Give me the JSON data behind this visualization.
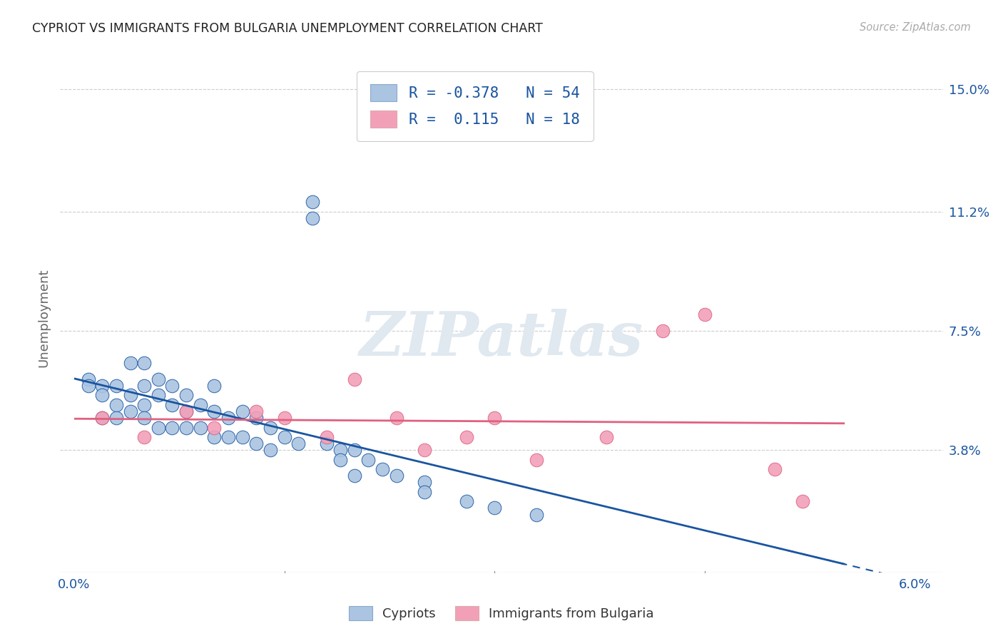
{
  "title": "CYPRIOT VS IMMIGRANTS FROM BULGARIA UNEMPLOYMENT CORRELATION CHART",
  "source": "Source: ZipAtlas.com",
  "ylabel": "Unemployment",
  "x_tick_vals": [
    0.0,
    0.015,
    0.03,
    0.045,
    0.06
  ],
  "x_tick_labels_visible": [
    "0.0%",
    "",
    "",
    "",
    "6.0%"
  ],
  "y_tick_vals": [
    0.0,
    0.038,
    0.075,
    0.112,
    0.15
  ],
  "y_tick_labels": [
    "",
    "3.8%",
    "7.5%",
    "11.2%",
    "15.0%"
  ],
  "xlim": [
    -0.001,
    0.062
  ],
  "ylim": [
    0.0,
    0.158
  ],
  "legend_label1": "Cypriots",
  "legend_label2": "Immigrants from Bulgaria",
  "color_blue": "#aac4e2",
  "color_pink": "#f2a0b8",
  "line_blue": "#1a55a0",
  "line_pink": "#e06080",
  "scatter_blue_x": [
    0.001,
    0.001,
    0.002,
    0.002,
    0.002,
    0.003,
    0.003,
    0.003,
    0.004,
    0.004,
    0.004,
    0.005,
    0.005,
    0.005,
    0.005,
    0.006,
    0.006,
    0.006,
    0.007,
    0.007,
    0.007,
    0.008,
    0.008,
    0.008,
    0.009,
    0.009,
    0.01,
    0.01,
    0.01,
    0.011,
    0.011,
    0.012,
    0.012,
    0.013,
    0.013,
    0.014,
    0.014,
    0.015,
    0.016,
    0.017,
    0.017,
    0.018,
    0.019,
    0.019,
    0.02,
    0.02,
    0.021,
    0.022,
    0.023,
    0.025,
    0.025,
    0.028,
    0.03,
    0.033
  ],
  "scatter_blue_y": [
    0.06,
    0.058,
    0.058,
    0.055,
    0.048,
    0.058,
    0.052,
    0.048,
    0.065,
    0.055,
    0.05,
    0.065,
    0.058,
    0.052,
    0.048,
    0.06,
    0.055,
    0.045,
    0.058,
    0.052,
    0.045,
    0.055,
    0.05,
    0.045,
    0.052,
    0.045,
    0.058,
    0.05,
    0.042,
    0.048,
    0.042,
    0.05,
    0.042,
    0.048,
    0.04,
    0.045,
    0.038,
    0.042,
    0.04,
    0.115,
    0.11,
    0.04,
    0.038,
    0.035,
    0.038,
    0.03,
    0.035,
    0.032,
    0.03,
    0.028,
    0.025,
    0.022,
    0.02,
    0.018
  ],
  "scatter_pink_x": [
    0.002,
    0.005,
    0.008,
    0.01,
    0.013,
    0.015,
    0.018,
    0.02,
    0.023,
    0.025,
    0.028,
    0.03,
    0.033,
    0.038,
    0.042,
    0.045,
    0.05,
    0.052
  ],
  "scatter_pink_y": [
    0.048,
    0.042,
    0.05,
    0.045,
    0.05,
    0.048,
    0.042,
    0.06,
    0.048,
    0.038,
    0.042,
    0.048,
    0.035,
    0.042,
    0.075,
    0.08,
    0.032,
    0.022
  ],
  "watermark_text": "ZIPatlas",
  "background_color": "#ffffff",
  "grid_color": "#cccccc",
  "grid_style": "--"
}
